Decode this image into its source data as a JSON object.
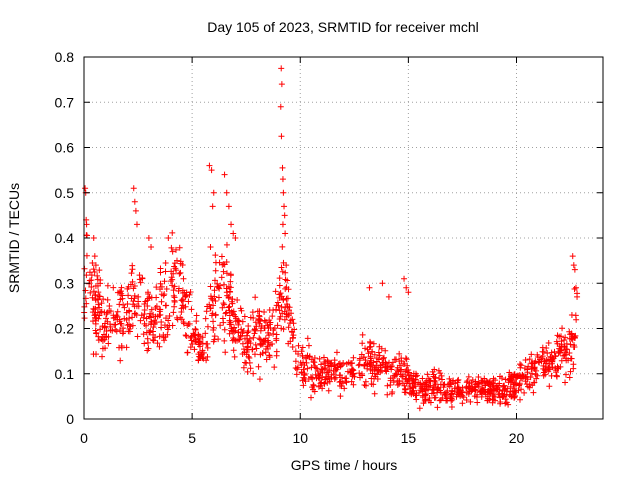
{
  "chart_data": {
    "type": "scatter",
    "title": "Day 105 of 2023, SRMTID for receiver mchl",
    "xlabel": "GPS time / hours",
    "ylabel": "SRMTID / TECUs",
    "xlim": [
      0,
      24
    ],
    "ylim": [
      0,
      0.8
    ],
    "xticks": [
      0,
      5,
      10,
      15,
      20
    ],
    "yticks": [
      0,
      0.1,
      0.2,
      0.3,
      0.4,
      0.5,
      0.6,
      0.7,
      0.8
    ],
    "grid": true,
    "marker": "+",
    "color": "#ff0000",
    "series": [
      {
        "name": "SRMTID",
        "approx_trend": {
          "x": [
            0,
            0.1,
            0.5,
            1,
            1.5,
            2,
            2.4,
            2.8,
            3.2,
            3.6,
            4,
            4.4,
            4.8,
            5.2,
            5.5,
            5.9,
            6.2,
            6.6,
            7,
            7.5,
            8,
            8.5,
            8.9,
            9.2,
            9.5,
            10,
            10.5,
            11,
            11.5,
            12,
            12.5,
            13,
            13.5,
            14,
            14.5,
            15,
            15.5,
            16,
            16.5,
            17,
            17.5,
            18,
            18.5,
            19,
            19.5,
            20,
            20.5,
            21,
            21.5,
            22,
            22.5,
            22.8
          ],
          "y": [
            0.3,
            0.33,
            0.24,
            0.2,
            0.24,
            0.22,
            0.27,
            0.24,
            0.2,
            0.25,
            0.29,
            0.3,
            0.22,
            0.17,
            0.14,
            0.26,
            0.25,
            0.28,
            0.2,
            0.17,
            0.2,
            0.18,
            0.22,
            0.3,
            0.22,
            0.12,
            0.11,
            0.1,
            0.11,
            0.09,
            0.11,
            0.13,
            0.12,
            0.11,
            0.1,
            0.09,
            0.06,
            0.07,
            0.07,
            0.06,
            0.06,
            0.07,
            0.06,
            0.07,
            0.06,
            0.08,
            0.1,
            0.12,
            0.13,
            0.14,
            0.16,
            0.22
          ]
        },
        "points": [
          [
            0.05,
            0.51
          ],
          [
            0.08,
            0.5
          ],
          [
            0.1,
            0.44
          ],
          [
            0.12,
            0.43
          ],
          [
            0.45,
            0.4
          ],
          [
            0.5,
            0.36
          ],
          [
            0.55,
            0.34
          ],
          [
            2.3,
            0.51
          ],
          [
            2.35,
            0.48
          ],
          [
            2.4,
            0.46
          ],
          [
            2.45,
            0.43
          ],
          [
            3.0,
            0.4
          ],
          [
            3.1,
            0.38
          ],
          [
            3.9,
            0.4
          ],
          [
            4.1,
            0.37
          ],
          [
            4.3,
            0.35
          ],
          [
            4.6,
            0.31
          ],
          [
            5.8,
            0.56
          ],
          [
            5.9,
            0.55
          ],
          [
            6.0,
            0.5
          ],
          [
            5.95,
            0.47
          ],
          [
            5.85,
            0.38
          ],
          [
            6.5,
            0.54
          ],
          [
            6.6,
            0.5
          ],
          [
            6.7,
            0.47
          ],
          [
            6.8,
            0.43
          ],
          [
            6.9,
            0.41
          ],
          [
            7.0,
            0.4
          ],
          [
            9.12,
            0.775
          ],
          [
            9.15,
            0.74
          ],
          [
            9.1,
            0.69
          ],
          [
            9.13,
            0.625
          ],
          [
            9.18,
            0.555
          ],
          [
            9.2,
            0.53
          ],
          [
            9.22,
            0.5
          ],
          [
            9.25,
            0.47
          ],
          [
            9.28,
            0.45
          ],
          [
            9.2,
            0.43
          ],
          [
            9.3,
            0.41
          ],
          [
            9.35,
            0.34
          ],
          [
            13.2,
            0.29
          ],
          [
            13.8,
            0.3
          ],
          [
            14.1,
            0.27
          ],
          [
            14.8,
            0.31
          ],
          [
            14.9,
            0.29
          ],
          [
            15.0,
            0.28
          ],
          [
            22.6,
            0.36
          ],
          [
            22.65,
            0.34
          ],
          [
            22.7,
            0.33
          ],
          [
            22.75,
            0.29
          ],
          [
            22.8,
            0.27
          ]
        ]
      }
    ]
  }
}
